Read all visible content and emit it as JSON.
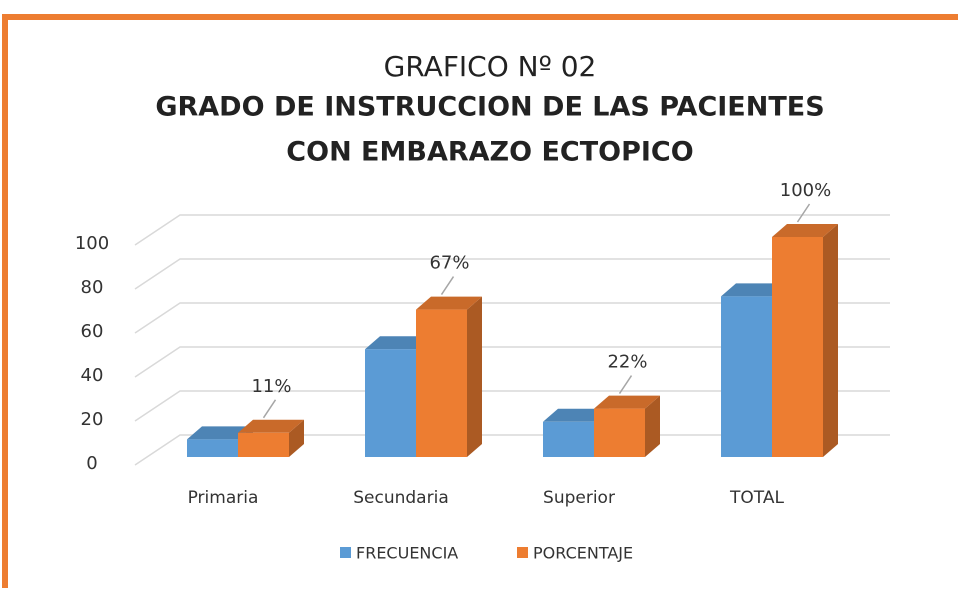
{
  "chart_data": {
    "type": "bar3d",
    "title": [
      "GRAFICO  Nº 02",
      "GRADO DE INSTRUCCION DE LAS PACIENTES",
      "CON   EMBARAZO ECTOPICO"
    ],
    "categories": [
      "Primaria",
      "Secundaria",
      "Superior",
      "TOTAL"
    ],
    "series": [
      {
        "name": "FRECUENCIA",
        "color": "#5b9bd5",
        "values": [
          8,
          49,
          16,
          73
        ]
      },
      {
        "name": "PORCENTAJE",
        "color": "#ed7d31",
        "values": [
          11,
          67,
          22,
          100
        ],
        "value_labels": [
          "11%",
          "67%",
          "22%",
          "100%"
        ]
      }
    ],
    "ylim": [
      0,
      100
    ],
    "yticks": [
      0,
      20,
      40,
      60,
      80,
      100
    ],
    "grid": true,
    "legend": "bottom"
  }
}
